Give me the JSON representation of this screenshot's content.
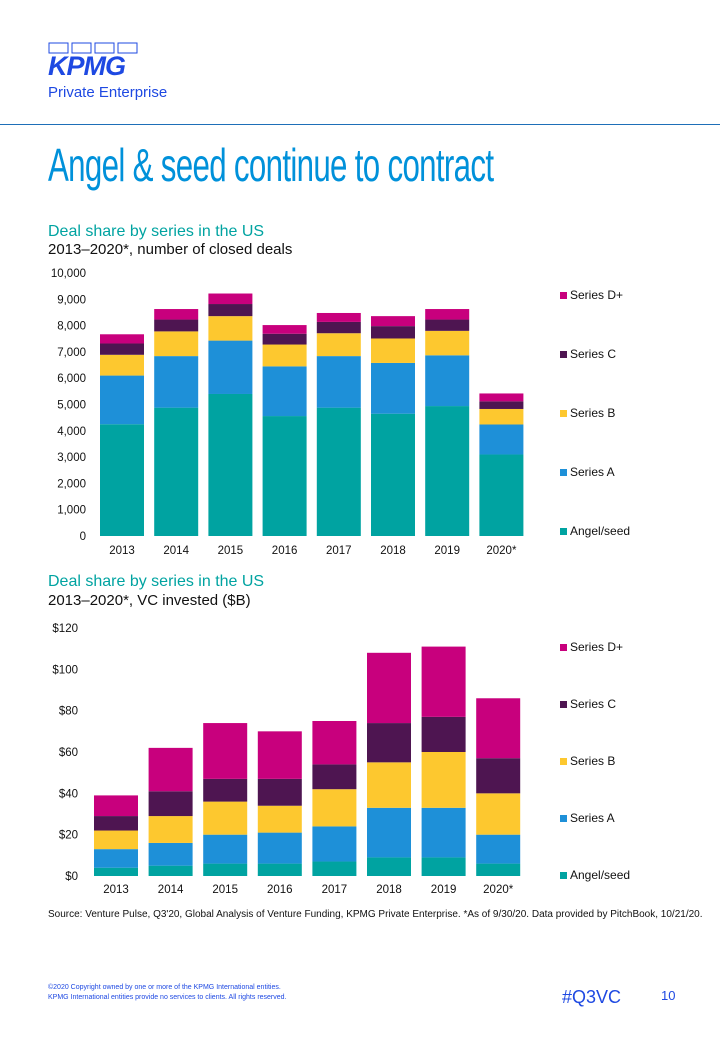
{
  "header": {
    "logo_text": "KPMG",
    "logo_sub": "Private Enterprise",
    "title": "Angel & seed continue to contract"
  },
  "colors": {
    "angel_seed": "#00a3a1",
    "series_a": "#1e90d8",
    "series_b": "#fdc82f",
    "series_c": "#4e1551",
    "series_d": "#c8007d",
    "brand_blue": "#1e49e2",
    "title_blue": "#0091da"
  },
  "chart_data": [
    {
      "type": "bar",
      "stacked": true,
      "title": "Deal share by series in the US",
      "subtitle": "2013–2020*, number of closed deals",
      "categories": [
        "2013",
        "2014",
        "2015",
        "2016",
        "2017",
        "2018",
        "2019",
        "2020*"
      ],
      "y_ticks": [
        "0",
        "1,000",
        "2,000",
        "3,000",
        "4,000",
        "5,000",
        "6,000",
        "7,000",
        "8,000",
        "9,000",
        "10,000"
      ],
      "ylim": [
        0,
        10000
      ],
      "legend_position": "right",
      "series": [
        {
          "name": "Angel/seed",
          "color_key": "angel_seed",
          "values": [
            4250,
            4880,
            5400,
            4560,
            4880,
            4650,
            4940,
            3100
          ]
        },
        {
          "name": "Series A",
          "color_key": "series_a",
          "values": [
            1850,
            1960,
            2030,
            1890,
            1960,
            1930,
            1930,
            1140
          ]
        },
        {
          "name": "Series B",
          "color_key": "series_b",
          "values": [
            790,
            940,
            930,
            830,
            870,
            930,
            930,
            590
          ]
        },
        {
          "name": "Series C",
          "color_key": "series_c",
          "values": [
            430,
            450,
            460,
            410,
            430,
            470,
            430,
            290
          ]
        },
        {
          "name": "Series D+",
          "color_key": "series_d",
          "values": [
            350,
            400,
            400,
            330,
            340,
            380,
            400,
            300
          ]
        }
      ]
    },
    {
      "type": "bar",
      "stacked": true,
      "title": "Deal share by series in the US",
      "subtitle": "2013–2020*, VC invested ($B)",
      "categories": [
        "2013",
        "2014",
        "2015",
        "2016",
        "2017",
        "2018",
        "2019",
        "2020*"
      ],
      "y_ticks": [
        "$0",
        "$20",
        "$40",
        "$60",
        "$80",
        "$100",
        "$120"
      ],
      "ylim": [
        0,
        120
      ],
      "legend_position": "right",
      "series": [
        {
          "name": "Angel/seed",
          "color_key": "angel_seed",
          "values": [
            4,
            5,
            6,
            6,
            7,
            9,
            9,
            6
          ]
        },
        {
          "name": "Series A",
          "color_key": "series_a",
          "values": [
            9,
            11,
            14,
            15,
            17,
            24,
            24,
            14
          ]
        },
        {
          "name": "Series B",
          "color_key": "series_b",
          "values": [
            9,
            13,
            16,
            13,
            18,
            22,
            27,
            20
          ]
        },
        {
          "name": "Series C",
          "color_key": "series_c",
          "values": [
            7,
            12,
            11,
            13,
            12,
            19,
            17,
            17
          ]
        },
        {
          "name": "Series D+",
          "color_key": "series_d",
          "values": [
            10,
            21,
            27,
            23,
            21,
            34,
            34,
            29
          ]
        }
      ]
    }
  ],
  "footer": {
    "source": "Source: Venture Pulse, Q3'20, Global Analysis of Venture Funding, KPMG Private Enterprise. *As of 9/30/20. Data provided by PitchBook, 10/21/20.",
    "copyright": "©2020 Copyright owned by one or more of the KPMG International entities.",
    "disclaimer": "KPMG International entities provide no services to clients. All rights reserved.",
    "hashtag": "#Q3VC",
    "page_number": "10"
  }
}
